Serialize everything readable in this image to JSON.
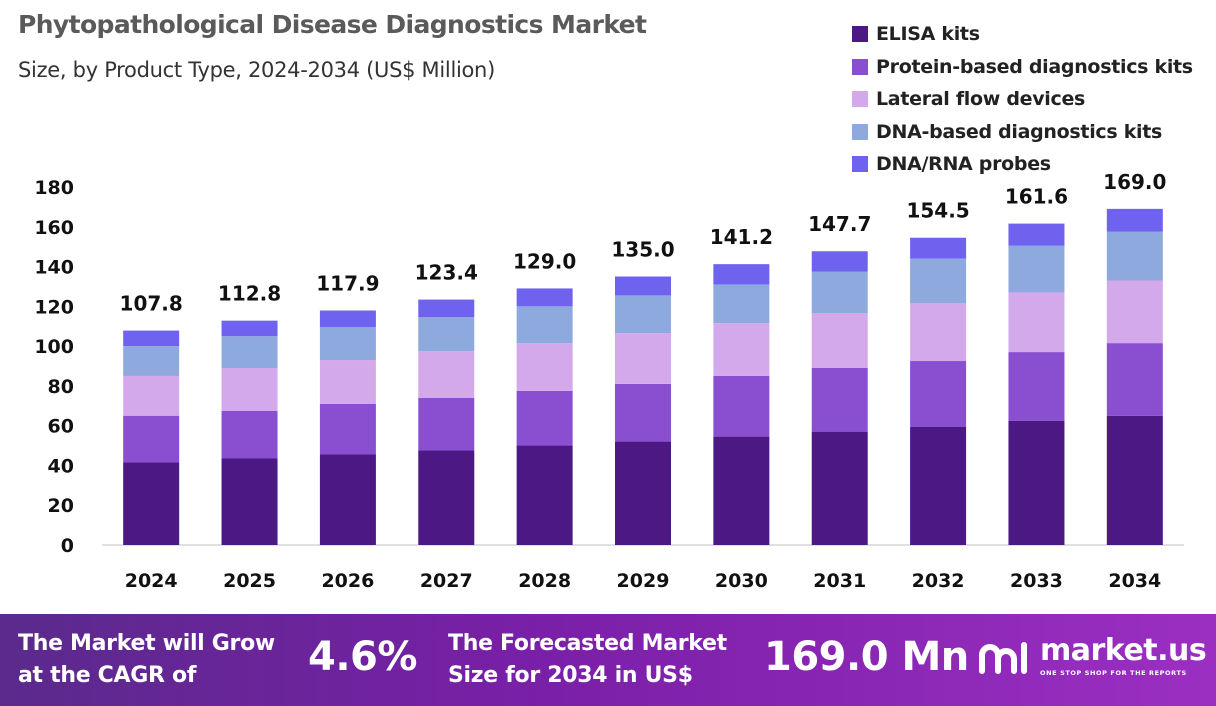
{
  "title": "Phytopathological Disease Diagnostics Market",
  "subtitle": "Size, by Product Type, 2024-2034 (US$ Million)",
  "colors": {
    "ELISA kits": "#4b1884",
    "Protein-based diagnostics kits": "#8a4fd1",
    "Lateral flow devices": "#d3a9ec",
    "DNA-based diagnostics kits": "#8ea9dd",
    "DNA/RNA probes": "#6e62ee"
  },
  "chart_data": {
    "type": "bar",
    "stacked": true,
    "categories": [
      "2024",
      "2025",
      "2026",
      "2027",
      "2028",
      "2029",
      "2030",
      "2031",
      "2032",
      "2033",
      "2034"
    ],
    "series": [
      {
        "name": "ELISA kits",
        "values": [
          41.5,
          43.5,
          45.5,
          47.5,
          50.0,
          52.0,
          54.5,
          57.0,
          59.5,
          62.5,
          65.0
        ]
      },
      {
        "name": "Protein-based diagnostics kits",
        "values": [
          23.5,
          24.0,
          25.5,
          26.5,
          27.5,
          29.0,
          30.5,
          32.0,
          33.0,
          34.5,
          36.5
        ]
      },
      {
        "name": "Lateral flow devices",
        "values": [
          20.0,
          21.5,
          22.0,
          23.5,
          24.0,
          25.5,
          26.5,
          27.5,
          29.0,
          30.0,
          31.5
        ]
      },
      {
        "name": "DNA-based diagnostics kits",
        "values": [
          15.0,
          16.0,
          16.5,
          17.0,
          18.5,
          19.0,
          19.5,
          21.0,
          22.5,
          23.5,
          24.5
        ]
      },
      {
        "name": "DNA/RNA probes",
        "values": [
          7.8,
          7.8,
          8.4,
          8.9,
          9.0,
          9.5,
          10.2,
          10.2,
          10.5,
          11.1,
          11.5
        ]
      }
    ],
    "totals": [
      "107.8",
      "112.8",
      "117.9",
      "123.4",
      "129.0",
      "135.0",
      "141.2",
      "147.7",
      "154.5",
      "161.6",
      "169.0"
    ],
    "yticks": [
      "0",
      "20",
      "40",
      "60",
      "80",
      "100",
      "120",
      "140",
      "160",
      "180"
    ],
    "ylim": [
      0,
      180
    ],
    "grid": false,
    "legend_position": "top-right"
  },
  "banner": {
    "cagr_label_1": "The Market will Grow",
    "cagr_label_2": "at the CAGR of",
    "cagr_value": "4.6%",
    "forecast_label_1": "The Forecasted Market",
    "forecast_label_2": "Size for 2034 in US$",
    "forecast_value": "169.0 Mn",
    "logo_name": "market.us",
    "logo_tagline": "ONE STOP SHOP FOR THE REPORTS"
  }
}
